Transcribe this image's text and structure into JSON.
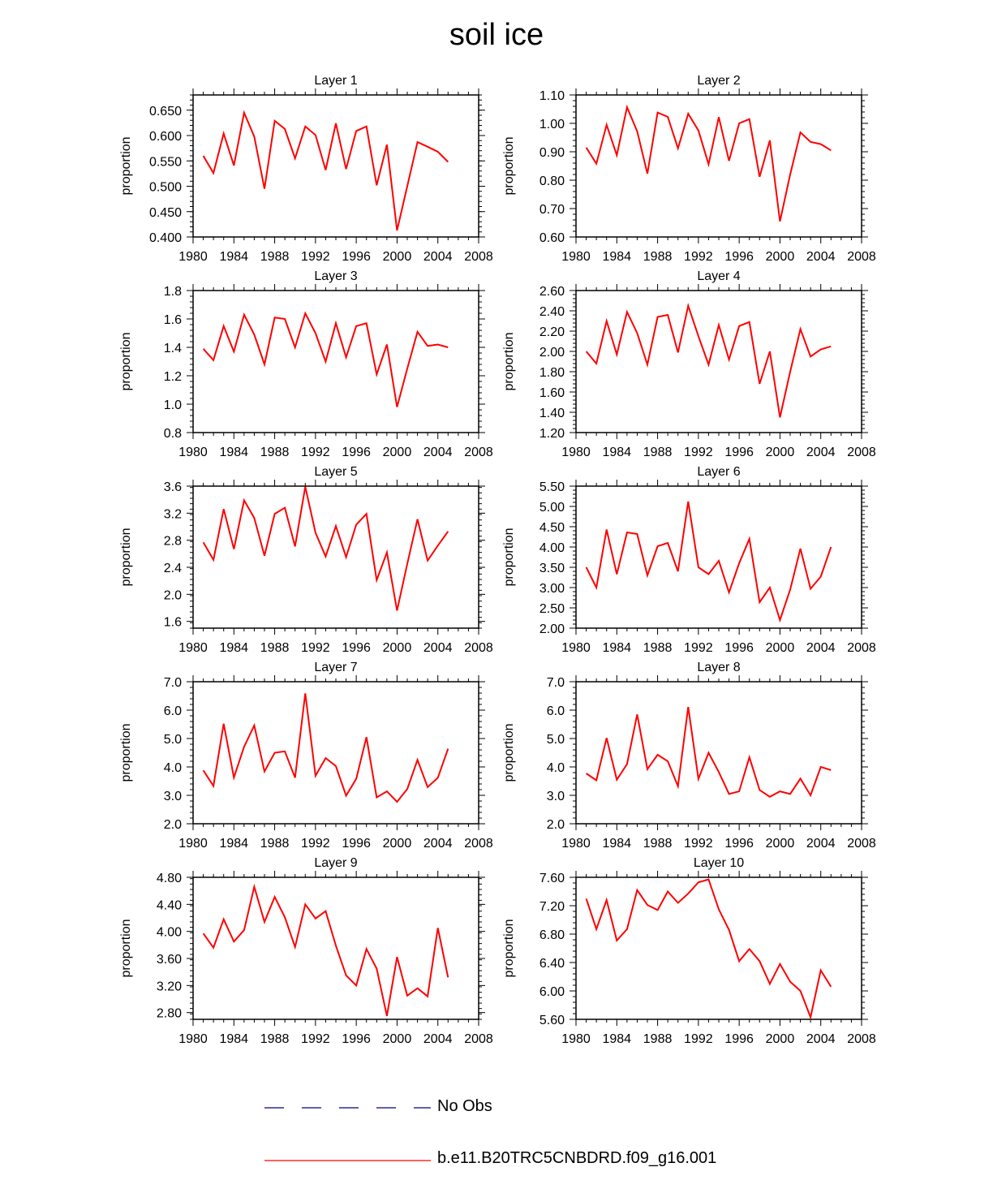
{
  "title": "soil ice",
  "colors": {
    "model": "#ff0000",
    "obs": "#000080",
    "axis": "#000000"
  },
  "legend": [
    {
      "label": "No Obs",
      "style": "dashed",
      "color": "#000080"
    },
    {
      "label": "b.e11.B20TRC5CNBDRD.f09_g16.001",
      "style": "solid",
      "color": "#ff0000"
    }
  ],
  "chart_data": [
    {
      "type": "line",
      "title": "Layer 1",
      "xlabel": "",
      "ylabel": "proportion",
      "xlim": [
        1980,
        2008
      ],
      "ylim": [
        0.4,
        0.68
      ],
      "xticks": [
        1980,
        1984,
        1988,
        1992,
        1996,
        2000,
        2004,
        2008
      ],
      "yticks": [
        "0.400",
        "0.450",
        "0.500",
        "0.550",
        "0.600",
        "0.650"
      ],
      "series": [
        {
          "name": "b.e11.B20TRC5CNBDRD.f09_g16.001",
          "x": [
            1981,
            1982,
            1983,
            1984,
            1985,
            1986,
            1987,
            1988,
            1989,
            1990,
            1991,
            1992,
            1993,
            1994,
            1995,
            1996,
            1997,
            1998,
            1999,
            2000,
            2001,
            2002,
            2003,
            2004,
            2005
          ],
          "y": [
            0.56,
            0.526,
            0.604,
            0.541,
            0.645,
            0.598,
            0.495,
            0.629,
            0.613,
            0.555,
            0.618,
            0.601,
            0.532,
            0.624,
            0.534,
            0.609,
            0.618,
            0.502,
            0.582,
            0.413,
            0.5,
            0.587,
            0.578,
            0.568,
            0.548
          ]
        }
      ]
    },
    {
      "type": "line",
      "title": "Layer 2",
      "xlabel": "",
      "ylabel": "proportion",
      "xlim": [
        1980,
        2008
      ],
      "ylim": [
        0.6,
        1.1
      ],
      "xticks": [
        1980,
        1984,
        1988,
        1992,
        1996,
        2000,
        2004,
        2008
      ],
      "yticks": [
        "0.60",
        "0.70",
        "0.80",
        "0.90",
        "1.00",
        "1.10"
      ],
      "series": [
        {
          "name": "b.e11.B20TRC5CNBDRD.f09_g16.001",
          "x": [
            1981,
            1982,
            1983,
            1984,
            1985,
            1986,
            1987,
            1988,
            1989,
            1990,
            1991,
            1992,
            1993,
            1994,
            1995,
            1996,
            1997,
            1998,
            1999,
            2000,
            2001,
            2002,
            2003,
            2004,
            2005
          ],
          "y": [
            0.915,
            0.858,
            0.995,
            0.888,
            1.057,
            0.972,
            0.823,
            1.038,
            1.023,
            0.912,
            1.034,
            0.975,
            0.856,
            1.022,
            0.868,
            1.0,
            1.015,
            0.812,
            0.94,
            0.655,
            0.82,
            0.968,
            0.935,
            0.927,
            0.905
          ]
        }
      ]
    },
    {
      "type": "line",
      "title": "Layer 3",
      "xlabel": "",
      "ylabel": "proportion",
      "xlim": [
        1980,
        2008
      ],
      "ylim": [
        0.8,
        1.8
      ],
      "xticks": [
        1980,
        1984,
        1988,
        1992,
        1996,
        2000,
        2004,
        2008
      ],
      "yticks": [
        "0.8",
        "1.0",
        "1.2",
        "1.4",
        "1.6",
        "1.8"
      ],
      "series": [
        {
          "name": "b.e11.B20TRC5CNBDRD.f09_g16.001",
          "x": [
            1981,
            1982,
            1983,
            1984,
            1985,
            1986,
            1987,
            1988,
            1989,
            1990,
            1991,
            1992,
            1993,
            1994,
            1995,
            1996,
            1997,
            1998,
            1999,
            2000,
            2001,
            2002,
            2003,
            2004,
            2005
          ],
          "y": [
            1.39,
            1.31,
            1.55,
            1.37,
            1.63,
            1.49,
            1.28,
            1.61,
            1.6,
            1.4,
            1.64,
            1.5,
            1.3,
            1.57,
            1.33,
            1.55,
            1.57,
            1.21,
            1.42,
            0.98,
            1.25,
            1.51,
            1.41,
            1.42,
            1.4
          ]
        }
      ]
    },
    {
      "type": "line",
      "title": "Layer 4",
      "xlabel": "",
      "ylabel": "proportion",
      "xlim": [
        1980,
        2008
      ],
      "ylim": [
        1.2,
        2.6
      ],
      "xticks": [
        1980,
        1984,
        1988,
        1992,
        1996,
        2000,
        2004,
        2008
      ],
      "yticks": [
        "1.20",
        "1.40",
        "1.60",
        "1.80",
        "2.00",
        "2.20",
        "2.40",
        "2.60"
      ],
      "series": [
        {
          "name": "b.e11.B20TRC5CNBDRD.f09_g16.001",
          "x": [
            1981,
            1982,
            1983,
            1984,
            1985,
            1986,
            1987,
            1988,
            1989,
            1990,
            1991,
            1992,
            1993,
            1994,
            1995,
            1996,
            1997,
            1998,
            1999,
            2000,
            2001,
            2002,
            2003,
            2004,
            2005
          ],
          "y": [
            2.0,
            1.88,
            2.3,
            1.97,
            2.39,
            2.18,
            1.87,
            2.34,
            2.36,
            1.99,
            2.45,
            2.15,
            1.87,
            2.26,
            1.92,
            2.25,
            2.29,
            1.68,
            2.0,
            1.35,
            1.8,
            2.22,
            1.95,
            2.02,
            2.05
          ]
        }
      ]
    },
    {
      "type": "line",
      "title": "Layer 5",
      "xlabel": "",
      "ylabel": "proportion",
      "xlim": [
        1980,
        2008
      ],
      "ylim": [
        1.5,
        3.6
      ],
      "xticks": [
        1980,
        1984,
        1988,
        1992,
        1996,
        2000,
        2004,
        2008
      ],
      "yticks": [
        "1.6",
        "2.0",
        "2.4",
        "2.8",
        "3.2",
        "3.6"
      ],
      "series": [
        {
          "name": "b.e11.B20TRC5CNBDRD.f09_g16.001",
          "x": [
            1981,
            1982,
            1983,
            1984,
            1985,
            1986,
            1987,
            1988,
            1989,
            1990,
            1991,
            1992,
            1993,
            1994,
            1995,
            1996,
            1997,
            1998,
            1999,
            2000,
            2001,
            2002,
            2003,
            2004,
            2005
          ],
          "y": [
            2.77,
            2.51,
            3.26,
            2.67,
            3.39,
            3.13,
            2.57,
            3.19,
            3.28,
            2.71,
            3.59,
            2.91,
            2.56,
            3.01,
            2.55,
            3.03,
            3.19,
            2.21,
            2.62,
            1.76,
            2.45,
            3.11,
            2.5,
            2.72,
            2.93
          ]
        }
      ]
    },
    {
      "type": "line",
      "title": "Layer 6",
      "xlabel": "",
      "ylabel": "proportion",
      "xlim": [
        1980,
        2008
      ],
      "ylim": [
        2.0,
        5.5
      ],
      "xticks": [
        1980,
        1984,
        1988,
        1992,
        1996,
        2000,
        2004,
        2008
      ],
      "yticks": [
        "2.00",
        "2.50",
        "3.00",
        "3.50",
        "4.00",
        "4.50",
        "5.00",
        "5.50"
      ],
      "series": [
        {
          "name": "b.e11.B20TRC5CNBDRD.f09_g16.001",
          "x": [
            1981,
            1982,
            1983,
            1984,
            1985,
            1986,
            1987,
            1988,
            1989,
            1990,
            1991,
            1992,
            1993,
            1994,
            1995,
            1996,
            1997,
            1998,
            1999,
            2000,
            2001,
            2002,
            2003,
            2004,
            2005
          ],
          "y": [
            3.5,
            3.0,
            4.43,
            3.33,
            4.36,
            4.32,
            3.3,
            4.02,
            4.1,
            3.4,
            5.12,
            3.5,
            3.33,
            3.66,
            2.88,
            3.6,
            4.2,
            2.64,
            3.0,
            2.2,
            2.95,
            3.96,
            2.97,
            3.27,
            4.0
          ]
        }
      ]
    },
    {
      "type": "line",
      "title": "Layer 7",
      "xlabel": "",
      "ylabel": "proportion",
      "xlim": [
        1980,
        2008
      ],
      "ylim": [
        2.0,
        7.0
      ],
      "xticks": [
        1980,
        1984,
        1988,
        1992,
        1996,
        2000,
        2004,
        2008
      ],
      "yticks": [
        "2.0",
        "3.0",
        "4.0",
        "5.0",
        "6.0",
        "7.0"
      ],
      "series": [
        {
          "name": "b.e11.B20TRC5CNBDRD.f09_g16.001",
          "x": [
            1981,
            1982,
            1983,
            1984,
            1985,
            1986,
            1987,
            1988,
            1989,
            1990,
            1991,
            1992,
            1993,
            1994,
            1995,
            1996,
            1997,
            1998,
            1999,
            2000,
            2001,
            2002,
            2003,
            2004,
            2005
          ],
          "y": [
            3.88,
            3.33,
            5.52,
            3.63,
            4.71,
            5.46,
            3.84,
            4.5,
            4.55,
            3.62,
            6.59,
            3.69,
            4.31,
            4.03,
            2.99,
            3.58,
            5.05,
            2.93,
            3.14,
            2.77,
            3.22,
            4.25,
            3.29,
            3.62,
            4.64
          ]
        }
      ]
    },
    {
      "type": "line",
      "title": "Layer 8",
      "xlabel": "",
      "ylabel": "proportion",
      "xlim": [
        1980,
        2008
      ],
      "ylim": [
        2.0,
        7.0
      ],
      "xticks": [
        1980,
        1984,
        1988,
        1992,
        1996,
        2000,
        2004,
        2008
      ],
      "yticks": [
        "2.0",
        "3.0",
        "4.0",
        "5.0",
        "6.0",
        "7.0"
      ],
      "series": [
        {
          "name": "b.e11.B20TRC5CNBDRD.f09_g16.001",
          "x": [
            1981,
            1982,
            1983,
            1984,
            1985,
            1986,
            1987,
            1988,
            1989,
            1990,
            1991,
            1992,
            1993,
            1994,
            1995,
            1996,
            1997,
            1998,
            1999,
            2000,
            2001,
            2002,
            2003,
            2004,
            2005
          ],
          "y": [
            3.77,
            3.53,
            5.02,
            3.55,
            4.1,
            5.85,
            3.92,
            4.43,
            4.2,
            3.32,
            6.11,
            3.58,
            4.5,
            3.82,
            3.05,
            3.14,
            4.34,
            3.19,
            2.95,
            3.14,
            3.05,
            3.59,
            3.0,
            4.0,
            3.89
          ]
        }
      ]
    },
    {
      "type": "line",
      "title": "Layer 9",
      "xlabel": "",
      "ylabel": "proportion",
      "xlim": [
        1980,
        2008
      ],
      "ylim": [
        2.7,
        4.8
      ],
      "xticks": [
        1980,
        1984,
        1988,
        1992,
        1996,
        2000,
        2004,
        2008
      ],
      "yticks": [
        "2.80",
        "3.20",
        "3.60",
        "4.00",
        "4.40",
        "4.80"
      ],
      "series": [
        {
          "name": "b.e11.B20TRC5CNBDRD.f09_g16.001",
          "x": [
            1981,
            1982,
            1983,
            1984,
            1985,
            1986,
            1987,
            1988,
            1989,
            1990,
            1991,
            1992,
            1993,
            1994,
            1995,
            1996,
            1997,
            1998,
            1999,
            2000,
            2001,
            2002,
            2003,
            2004,
            2005
          ],
          "y": [
            3.97,
            3.76,
            4.18,
            3.85,
            4.02,
            4.66,
            4.14,
            4.51,
            4.21,
            3.77,
            4.4,
            4.19,
            4.3,
            3.79,
            3.35,
            3.2,
            3.74,
            3.45,
            2.75,
            3.62,
            3.05,
            3.16,
            3.04,
            4.05,
            3.32
          ]
        }
      ]
    },
    {
      "type": "line",
      "title": "Layer 10",
      "xlabel": "",
      "ylabel": "proportion",
      "xlim": [
        1980,
        2008
      ],
      "ylim": [
        5.6,
        7.6
      ],
      "xticks": [
        1980,
        1984,
        1988,
        1992,
        1996,
        2000,
        2004,
        2008
      ],
      "yticks": [
        "5.60",
        "6.00",
        "6.40",
        "6.80",
        "7.20",
        "7.60"
      ],
      "series": [
        {
          "name": "b.e11.B20TRC5CNBDRD.f09_g16.001",
          "x": [
            1981,
            1982,
            1983,
            1984,
            1985,
            1986,
            1987,
            1988,
            1989,
            1990,
            1991,
            1992,
            1993,
            1994,
            1995,
            1996,
            1997,
            1998,
            1999,
            2000,
            2001,
            2002,
            2003,
            2004,
            2005
          ],
          "y": [
            7.3,
            6.87,
            7.28,
            6.71,
            6.87,
            7.42,
            7.21,
            7.14,
            7.4,
            7.24,
            7.37,
            7.53,
            7.57,
            7.15,
            6.86,
            6.42,
            6.59,
            6.42,
            6.1,
            6.38,
            6.13,
            6.0,
            5.63,
            6.29,
            6.06
          ]
        }
      ]
    }
  ]
}
